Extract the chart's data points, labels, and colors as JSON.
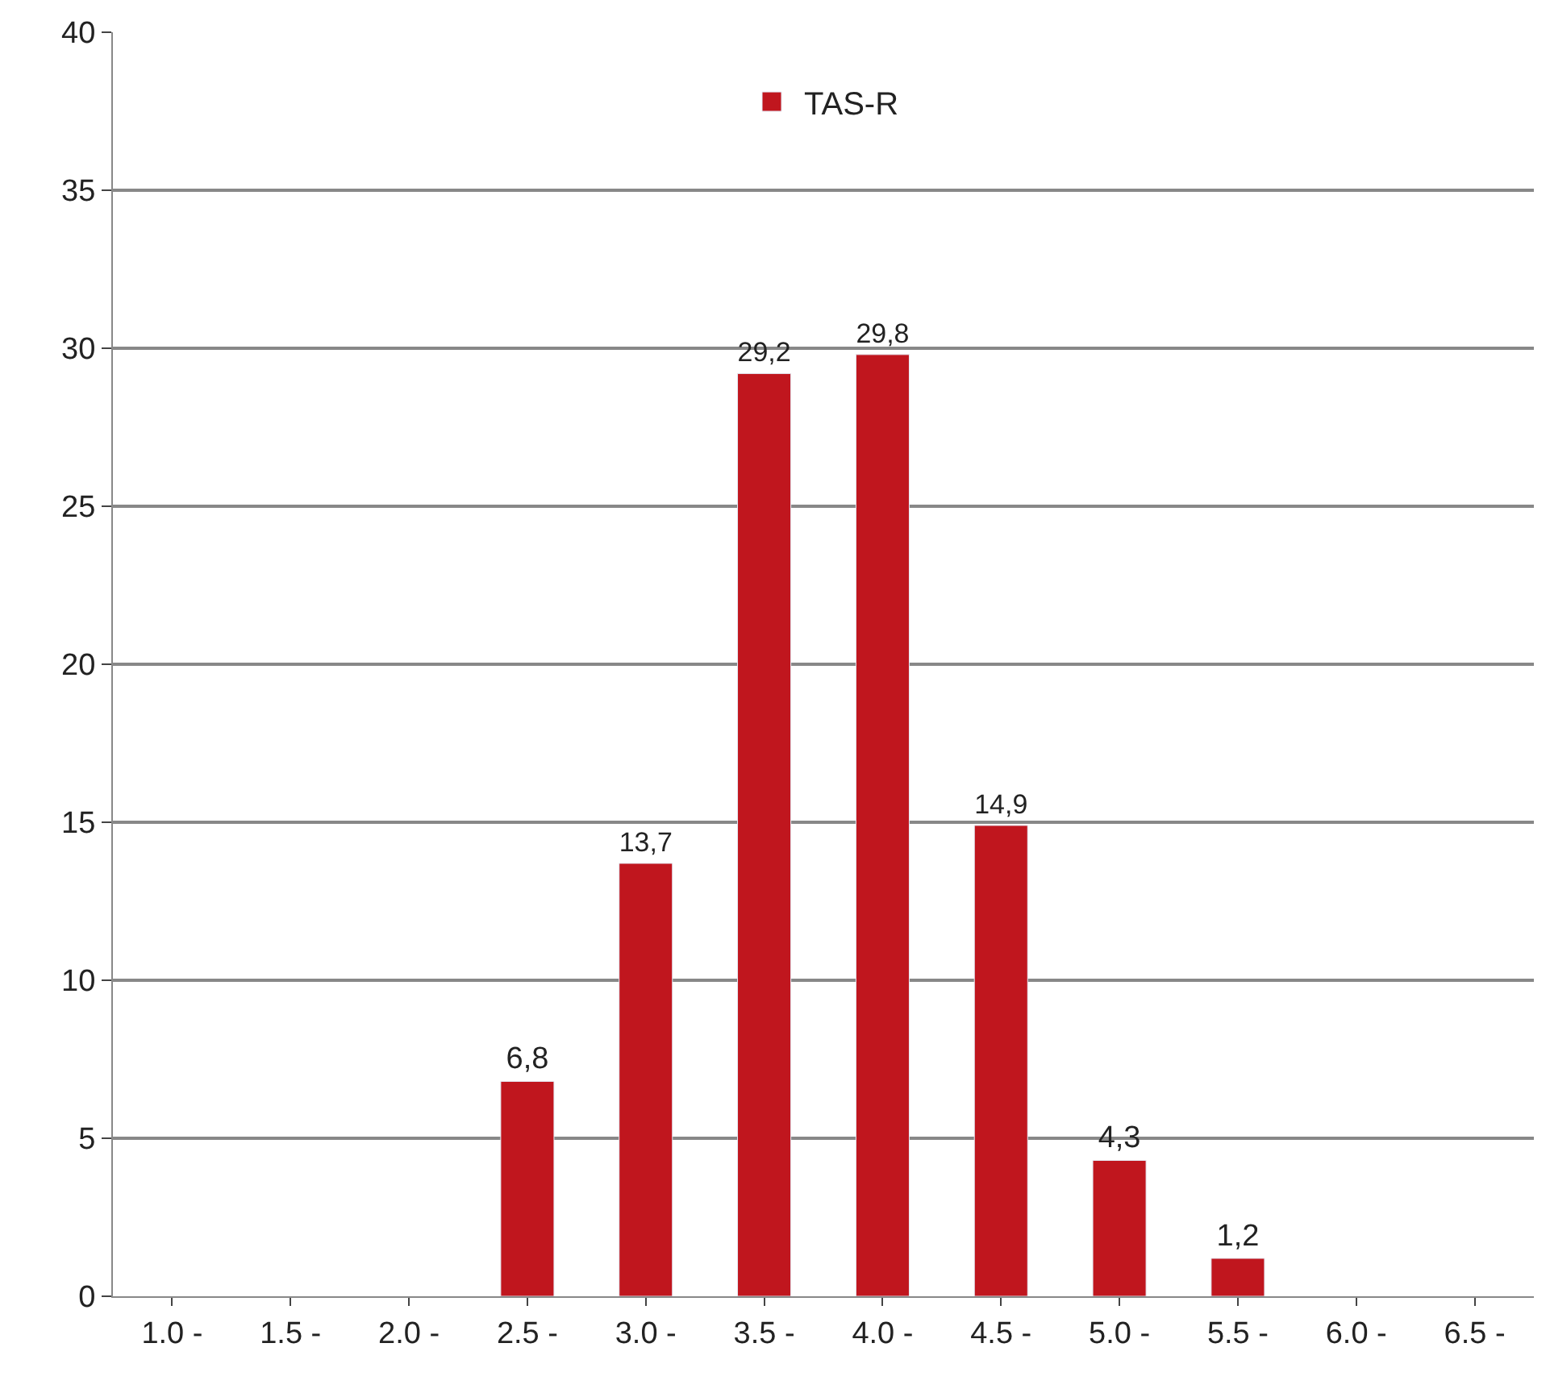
{
  "chart_data": {
    "type": "bar",
    "categories": [
      "1.0 -",
      "1.5 -",
      "2.0 -",
      "2.5 -",
      "3.0 -",
      "3.5 -",
      "4.0 -",
      "4.5 -",
      "5.0 -",
      "5.5 -",
      "6.0 -",
      "6.5 -"
    ],
    "series": [
      {
        "name": "TAS-R",
        "color": "#c0161e",
        "values": [
          null,
          null,
          null,
          6.8,
          13.7,
          29.2,
          29.8,
          14.9,
          4.3,
          1.2,
          null,
          null
        ],
        "value_labels": [
          null,
          null,
          null,
          "6,8",
          "13,7",
          "29,2",
          "29,8",
          "14,9",
          "4,3",
          "1,2",
          null,
          null
        ]
      }
    ],
    "ylim": [
      0,
      40
    ],
    "yticks": [
      0,
      5,
      10,
      15,
      20,
      25,
      30,
      35,
      40
    ],
    "grid": "y",
    "legend": "top"
  }
}
